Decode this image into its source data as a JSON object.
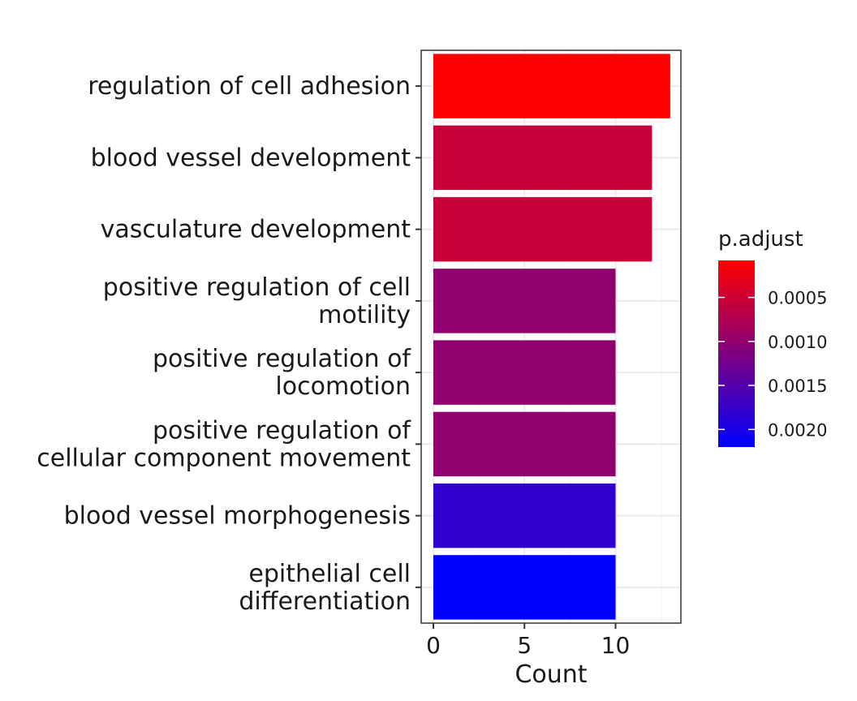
{
  "chart_data": {
    "type": "bar",
    "orientation": "horizontal",
    "categories": [
      [
        "regulation of cell adhesion"
      ],
      [
        "blood vessel development"
      ],
      [
        "vasculature development"
      ],
      [
        "positive regulation of cell",
        "motility"
      ],
      [
        "positive regulation of",
        "locomotion"
      ],
      [
        "positive regulation of",
        "cellular component movement"
      ],
      [
        "blood vessel morphogenesis"
      ],
      [
        "epithelial cell",
        "differentiation"
      ]
    ],
    "values": [
      13,
      12,
      12,
      10,
      10,
      10,
      10,
      10
    ],
    "p_adjust": [
      8e-05,
      0.00055,
      0.00055,
      0.001,
      0.001,
      0.001,
      0.0018,
      0.0022
    ],
    "xlabel": "Count",
    "ylabel": "",
    "xlim": [
      -0.5,
      13.6
    ],
    "xticks": [
      0,
      5,
      10
    ],
    "grid": true,
    "legend": {
      "title": "p.adjust",
      "placement": "right",
      "min": 8e-05,
      "max": 0.0022,
      "ticks": [
        0.0005,
        0.001,
        0.0015,
        0.002
      ],
      "tick_labels": [
        "0.0005",
        "0.0010",
        "0.0015",
        "0.0020"
      ],
      "low_color": "#ff0000",
      "high_color": "#0000ff"
    },
    "colors": {
      "panel_border": "#333333",
      "grid_major": "#ebebeb",
      "grid_minor": "#f5f5f5"
    }
  }
}
